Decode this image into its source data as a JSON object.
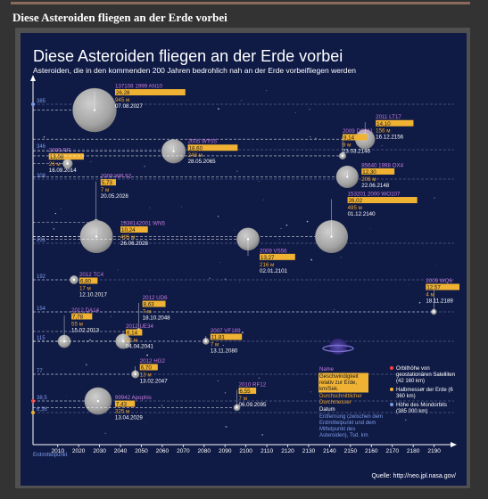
{
  "page": {
    "heading": "Diese Asteroiden fliegen an der Erde vorbei"
  },
  "chart_data": {
    "type": "scatter",
    "title": "Diese Asteroiden fliegen an der Erde vorbei",
    "subtitle": "Asteroiden, die in den kommenden 200 Jahren bedrohlich nah an der Erde vorbeifliegen werden",
    "xlabel": "",
    "ylabel": "Erdmittelpunkt",
    "x_ticks": [
      2010,
      2020,
      2030,
      2040,
      2050,
      2060,
      2070,
      2080,
      2090,
      2100,
      2110,
      2120,
      2130,
      2140,
      2150,
      2160,
      2170,
      2180,
      2190
    ],
    "xlim": [
      2005,
      2197
    ],
    "y_ticks": [
      {
        "value": 0,
        "label": "Erdmittelpunkt"
      },
      {
        "value": 6.36,
        "label": "6,36"
      },
      {
        "value": 38.5,
        "label": "38,5"
      },
      {
        "value": 77,
        "label": "77"
      },
      {
        "value": 115,
        "label": "115"
      },
      {
        "value": 154,
        "label": "154"
      },
      {
        "value": 192,
        "label": "192"
      },
      {
        "value": 231,
        "label": "231"
      },
      {
        "value": 308,
        "label": "308"
      },
      {
        "value": 346,
        "label": "346"
      },
      {
        "value": 385,
        "label": "385"
      }
    ],
    "asteroids": [
      {
        "name": "2011 LT17",
        "speed": "14,10",
        "diameter": "156 м",
        "date": "16.12.2156",
        "year": 2156.96,
        "distance": 355
      },
      {
        "name": "137108 1999 AN10",
        "speed": "26,28",
        "diameter": "945 м",
        "date": "07.08.2027",
        "year": 2027.6,
        "distance": 380
      },
      {
        "name": "2009 RR",
        "speed": "13,06",
        "diameter": "26 м",
        "date": "16.09.2014",
        "year": 2014.71,
        "distance": 328
      },
      {
        "name": "2005 WY55",
        "speed": "18,60",
        "diameter": "248 м",
        "date": "28.05.2065",
        "year": 2065.4,
        "distance": 344
      },
      {
        "name": "2009 DO111",
        "speed": "9,14",
        "diameter": "9 м",
        "date": "23.03.2146",
        "year": 2146.22,
        "distance": 338
      },
      {
        "name": "85640 1998 OX4",
        "speed": "12,30",
        "diameter": "206 м",
        "date": "22.06.2148",
        "year": 2148.47,
        "distance": 311
      },
      {
        "name": "2009 WR 52",
        "speed": "5,73",
        "diameter": "7 м",
        "date": "20.05.2028",
        "year": 2028.38,
        "distance": 256
      },
      {
        "name": "153201 2000 WO107",
        "speed": "26,02",
        "diameter": "495 м",
        "date": "01.12.2140",
        "year": 2140.92,
        "distance": 239
      },
      {
        "name": "1338142001 WN5",
        "speed": "10,24",
        "diameter": "495 м",
        "date": "26.06.2028",
        "year": 2028.48,
        "distance": 239
      },
      {
        "name": "2009 VS56",
        "speed": "13,27",
        "diameter": "216 м",
        "date": "02.01.2101",
        "year": 2101.0,
        "distance": 236
      },
      {
        "name": "2012 TC4",
        "speed": "6,80",
        "diameter": "17 м",
        "date": "12.10.2017",
        "year": 2017.78,
        "distance": 192
      },
      {
        "name": "2009 WQ6",
        "speed": "12,57",
        "diameter": "4 м",
        "date": "18.11.2189",
        "year": 2189.88,
        "distance": 154
      },
      {
        "name": "2012 UD6",
        "speed": "8,63",
        "diameter": "7 м",
        "date": "18.10.2048",
        "year": 2048.8,
        "distance": 128
      },
      {
        "name": "2012 DA14",
        "speed": "7,78",
        "diameter": "55 м",
        "date": "15.02.2013",
        "year": 2013.13,
        "distance": 115
      },
      {
        "name": "2012 UE34",
        "speed": "6,14",
        "diameter": "82 м",
        "date": "04.04.2041",
        "year": 2041.26,
        "distance": 115
      },
      {
        "name": "2007 VF189",
        "speed": "11,81",
        "diameter": "7 м",
        "date": "13.11.2080",
        "year": 2080.87,
        "distance": 115
      },
      {
        "name": "2012 HG2",
        "speed": "6,70",
        "diameter": "13 м",
        "date": "13.02.2047",
        "year": 2047.12,
        "distance": 77
      },
      {
        "name": "99942 Apophis",
        "speed": "7,43",
        "diameter": "325 м",
        "date": "13.04.2029",
        "year": 2029.28,
        "distance": 38.5
      },
      {
        "name": "2010 RF12",
        "speed": "6,55",
        "diameter": "7 м",
        "date": "06.09.2095",
        "year": 2095.68,
        "distance": 20
      }
    ],
    "legend": {
      "name": "Name",
      "speed": "Geschwindigkeit relativ zur Erde, km/Sek.",
      "diameter": "Durchschnittlicher Durchmesser",
      "date": "Datum",
      "distance": "Entfernung (zwischen dem Erdmittelpunkt und dem Mittelpunkt des Asteroiden), Tsd. km",
      "orbit_sat": "Orbithöhe von geostationären Satelliten (42 160 km)",
      "earth_radius": "Halbmesser der Erde (6 360 km)",
      "moon_orbit": "Höhe des Mondorbits (385 000 km)"
    },
    "source": "Quelle: http://neo.jpl.nasa.gov/",
    "colors": {
      "background": "#0f1a45",
      "name": "#c77be0",
      "speed_bar": "#f0b233",
      "diameter": "#f0a830",
      "text": "#ffffff",
      "tick": "#7d9ce8",
      "orbit_sat": "#ff4040",
      "earth_radius": "#f0b233",
      "moon_orbit": "#7d9ce8"
    }
  }
}
